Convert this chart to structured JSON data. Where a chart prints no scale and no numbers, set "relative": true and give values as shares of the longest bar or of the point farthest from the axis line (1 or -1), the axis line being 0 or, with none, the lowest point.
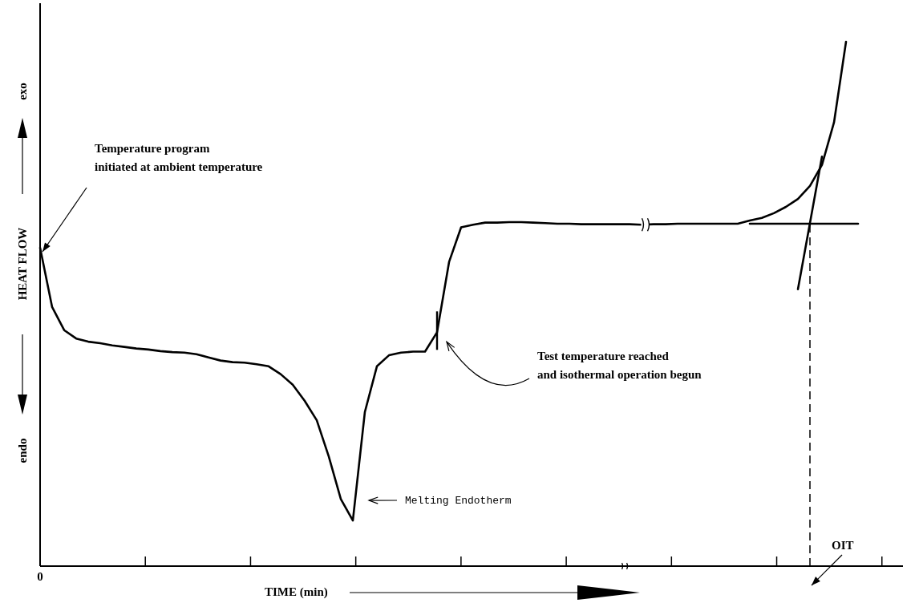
{
  "chart_data": {
    "type": "line",
    "relative": true,
    "xlabel": "TIME (min)",
    "ylabel": "HEAT FLOW",
    "categories": [
      null,
      null,
      null,
      null,
      null,
      null,
      null,
      null,
      null,
      null,
      null,
      null,
      null,
      null,
      null,
      null,
      null,
      null,
      null,
      null,
      null,
      null,
      null,
      null,
      null,
      null,
      null,
      null,
      null,
      null,
      null,
      null,
      null,
      null,
      null,
      null,
      null,
      null,
      null,
      null,
      null,
      null,
      null,
      null,
      null,
      null,
      null,
      null,
      null,
      null,
      null,
      null,
      null,
      null,
      null,
      null,
      null,
      null,
      null,
      null,
      null,
      null,
      null,
      null,
      null,
      null,
      null,
      null,
      null
    ],
    "series": [
      {
        "color": "#000000",
        "values": [
          0.607,
          0.494,
          0.45,
          0.434,
          0.428,
          0.425,
          0.421,
          0.418,
          0.415,
          0.413,
          0.41,
          0.408,
          0.407,
          0.404,
          0.398,
          0.392,
          0.389,
          0.388,
          0.385,
          0.381,
          0.366,
          0.346,
          0.315,
          0.278,
          0.209,
          0.128,
          0.087,
          0.294,
          0.381,
          0.402,
          0.407,
          0.409,
          0.409,
          0.446,
          0.58,
          0.646,
          0.651,
          0.655,
          0.655,
          0.656,
          0.656,
          0.655,
          0.654,
          0.653,
          0.653,
          0.652,
          0.652,
          0.652,
          0.652,
          0.652,
          0.651,
          0.652,
          0.652,
          0.653,
          0.653,
          0.653,
          0.653,
          0.653,
          0.653,
          0.659,
          0.664,
          0.673,
          0.685,
          0.7,
          0.725,
          0.765,
          0.846,
          1.0,
          null
        ]
      },
      {
        "color": "#000000",
        "values": [
          null,
          null,
          null,
          null,
          null,
          null,
          null,
          null,
          null,
          null,
          null,
          null,
          null,
          null,
          null,
          null,
          null,
          null,
          null,
          null,
          null,
          null,
          null,
          null,
          null,
          null,
          null,
          null,
          null,
          null,
          null,
          null,
          null,
          null,
          null,
          null,
          null,
          null,
          null,
          null,
          null,
          null,
          null,
          null,
          null,
          null,
          null,
          null,
          null,
          null,
          null,
          null,
          null,
          null,
          null,
          null,
          null,
          null,
          null,
          0.653,
          0.653,
          0.653,
          0.653,
          0.653,
          0.653,
          0.653,
          0.653,
          0.653,
          0.653
        ]
      },
      {
        "color": "#000000",
        "values": [
          null,
          null,
          null,
          null,
          null,
          null,
          null,
          null,
          null,
          null,
          null,
          null,
          null,
          null,
          null,
          null,
          null,
          null,
          null,
          null,
          null,
          null,
          null,
          null,
          null,
          null,
          null,
          null,
          null,
          null,
          null,
          null,
          null,
          null,
          null,
          null,
          null,
          null,
          null,
          null,
          null,
          null,
          null,
          null,
          null,
          null,
          null,
          null,
          null,
          null,
          null,
          null,
          null,
          null,
          null,
          null,
          null,
          null,
          null,
          null,
          null,
          null,
          null,
          0.528,
          0.654,
          0.781,
          null,
          null,
          null
        ]
      }
    ],
    "annotations": [
      "Temperature program initiated at ambient temperature",
      "Melting Endotherm",
      "Test temperature reached and isothermal operation begun",
      "endo",
      "exo",
      "0",
      "OIT"
    ]
  }
}
